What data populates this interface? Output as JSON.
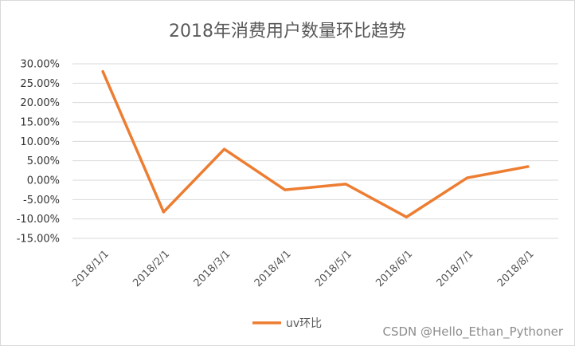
{
  "chart_data": {
    "type": "line",
    "title": "2018年消费用户数量环比趋势",
    "x": [
      "2018/1/1",
      "2018/2/1",
      "2018/3/1",
      "2018/4/1",
      "2018/5/1",
      "2018/6/1",
      "2018/7/1",
      "2018/8/1"
    ],
    "series": [
      {
        "name": "uv环比",
        "values": [
          0.28,
          -0.082,
          0.08,
          -0.025,
          -0.01,
          -0.095,
          0.006,
          0.035
        ],
        "color": "#ed7d31"
      }
    ],
    "ylim": [
      -0.15,
      0.3
    ],
    "yticks": [
      0.3,
      0.25,
      0.2,
      0.15,
      0.1,
      0.05,
      0.0,
      -0.05,
      -0.1,
      -0.15
    ],
    "ytick_labels": [
      "30.00%",
      "25.00%",
      "20.00%",
      "15.00%",
      "10.00%",
      "5.00%",
      "0.00%",
      "-5.00%",
      "-10.00%",
      "-15.00%"
    ],
    "grid": true,
    "legend": "bottom"
  },
  "watermark": "CSDN @Hello_Ethan_Pythoner"
}
